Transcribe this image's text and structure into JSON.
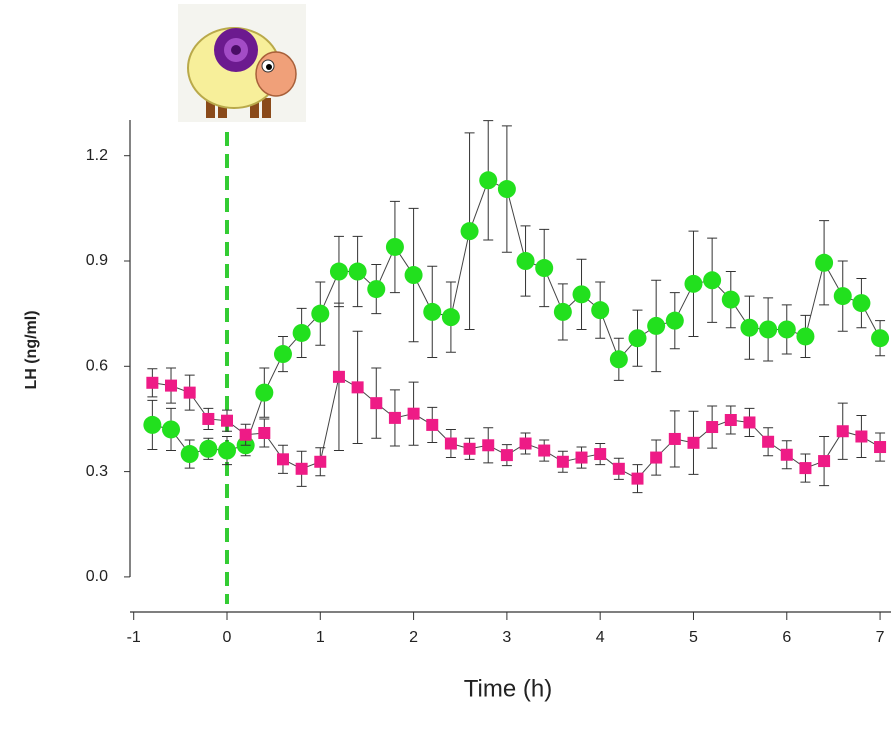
{
  "chart_data": {
    "type": "line",
    "xlabel": "Time (h)",
    "ylabel": "LH (ng/ml)",
    "x": [
      -0.8,
      -0.6,
      -0.4,
      -0.2,
      0,
      0.2,
      0.4,
      0.6,
      0.8,
      1.0,
      1.2,
      1.4,
      1.6,
      1.8,
      2.0,
      2.2,
      2.4,
      2.6,
      2.8,
      3.0,
      3.2,
      3.4,
      3.6,
      3.8,
      4.0,
      4.2,
      4.4,
      4.6,
      4.8,
      5.0,
      5.2,
      5.4,
      5.6,
      5.8,
      6.0,
      6.2,
      6.4,
      6.6,
      6.8,
      7.0
    ],
    "series": [
      {
        "color": "#22e01e",
        "marker": "circle",
        "values": [
          0.433,
          0.42,
          0.35,
          0.365,
          0.36,
          0.375,
          0.525,
          0.635,
          0.695,
          0.75,
          0.87,
          0.87,
          0.82,
          0.94,
          0.86,
          0.755,
          0.74,
          0.985,
          1.13,
          1.105,
          0.9,
          0.88,
          0.755,
          0.805,
          0.76,
          0.62,
          0.68,
          0.715,
          0.73,
          0.835,
          0.845,
          0.79,
          0.71,
          0.705,
          0.705,
          0.685,
          0.895,
          0.8,
          0.78,
          0.68
        ],
        "errors": [
          0.07,
          0.06,
          0.04,
          0.03,
          0.04,
          0.03,
          0.07,
          0.05,
          0.07,
          0.09,
          0.1,
          0.1,
          0.07,
          0.13,
          0.19,
          0.13,
          0.1,
          0.28,
          0.17,
          0.18,
          0.1,
          0.11,
          0.08,
          0.1,
          0.08,
          0.06,
          0.08,
          0.13,
          0.08,
          0.15,
          0.12,
          0.08,
          0.09,
          0.09,
          0.07,
          0.06,
          0.12,
          0.1,
          0.07,
          0.05
        ]
      },
      {
        "color": "#ee1b86",
        "marker": "square",
        "values": [
          0.553,
          0.545,
          0.525,
          0.45,
          0.445,
          0.405,
          0.41,
          0.335,
          0.308,
          0.328,
          0.57,
          0.54,
          0.495,
          0.453,
          0.465,
          0.433,
          0.38,
          0.365,
          0.375,
          0.347,
          0.38,
          0.36,
          0.328,
          0.34,
          0.35,
          0.308,
          0.28,
          0.34,
          0.393,
          0.382,
          0.427,
          0.447,
          0.44,
          0.385,
          0.348,
          0.31,
          0.33,
          0.415,
          0.4,
          0.37
        ],
        "errors": [
          0.04,
          0.05,
          0.05,
          0.03,
          0.03,
          0.03,
          0.04,
          0.04,
          0.05,
          0.04,
          0.21,
          0.16,
          0.1,
          0.08,
          0.09,
          0.05,
          0.04,
          0.03,
          0.05,
          0.03,
          0.03,
          0.03,
          0.03,
          0.03,
          0.03,
          0.03,
          0.04,
          0.05,
          0.08,
          0.09,
          0.06,
          0.04,
          0.04,
          0.04,
          0.04,
          0.04,
          0.07,
          0.08,
          0.06,
          0.04
        ]
      }
    ],
    "xlim": [
      -1,
      7.1
    ],
    "xticks": [
      -1,
      0,
      1,
      2,
      3,
      4,
      5,
      6,
      7
    ],
    "ylim": [
      -0.1,
      1.3
    ],
    "yticks": [
      {
        "value": 0,
        "label": "0.0"
      },
      0.3,
      0.6,
      0.9,
      1.2
    ],
    "vline": {
      "x": 0,
      "color": "#33cc33"
    }
  }
}
